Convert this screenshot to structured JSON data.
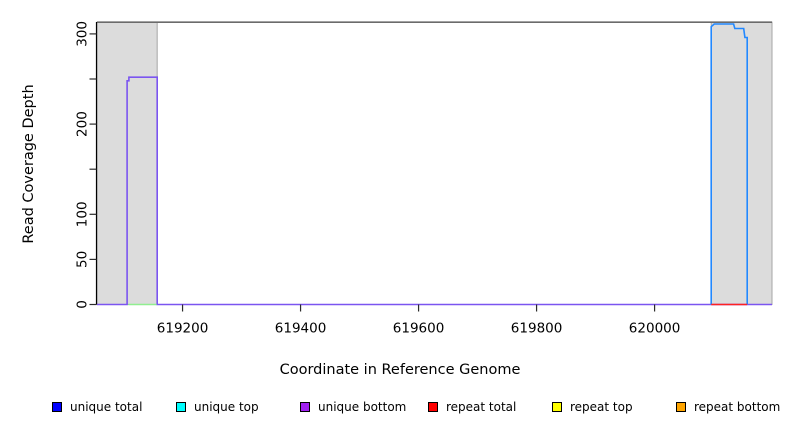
{
  "chart_data": {
    "type": "area",
    "title": "",
    "xlabel": "Coordinate in Reference Genome",
    "ylabel": "Read Coverage Depth",
    "xlim": [
      619055,
      620199
    ],
    "ylim": [
      0,
      313
    ],
    "grid": false,
    "x_ticks": [
      {
        "value": 619200,
        "label": "619200"
      },
      {
        "value": 619400,
        "label": "619400"
      },
      {
        "value": 619600,
        "label": "619600"
      },
      {
        "value": 619800,
        "label": "619800"
      },
      {
        "value": 620000,
        "label": "620000"
      }
    ],
    "y_ticks": [
      {
        "value": 0,
        "label": "0"
      },
      {
        "value": 50,
        "label": "50"
      },
      {
        "value": 100,
        "label": "100"
      },
      {
        "value": 150,
        "label": ""
      },
      {
        "value": 200,
        "label": "200"
      },
      {
        "value": 250,
        "label": ""
      },
      {
        "value": 300,
        "label": "300"
      }
    ],
    "shaded_regions": [
      {
        "name": "left-repeat-region",
        "x0": 619055,
        "x1": 619157,
        "y_top": 313
      },
      {
        "name": "right-repeat-region",
        "x0": 620096,
        "x1": 620199,
        "y_top": 313
      }
    ],
    "ceiling_line": {
      "y": 313,
      "color": "#6B6B6B"
    },
    "series": [
      {
        "name": "unique bottom coverage",
        "color": "#7B55F0",
        "width": 1.6,
        "points": [
          [
            619055,
            0
          ],
          [
            619106,
            0
          ],
          [
            619106,
            248
          ],
          [
            619109,
            248
          ],
          [
            619109,
            252
          ],
          [
            619157,
            252
          ],
          [
            619157,
            0
          ],
          [
            620199,
            0
          ]
        ]
      },
      {
        "name": "left-peak-base-segment",
        "color": "#90EE90",
        "width": 1.6,
        "points": [
          [
            619108,
            0
          ],
          [
            619156,
            0
          ]
        ]
      },
      {
        "name": "unique total coverage",
        "color": "#2288FF",
        "width": 1.6,
        "points": [
          [
            620096,
            0
          ],
          [
            620096,
            308
          ],
          [
            620101,
            311
          ],
          [
            620134,
            311
          ],
          [
            620136,
            306
          ],
          [
            620151,
            306
          ],
          [
            620153,
            296
          ],
          [
            620157,
            296
          ],
          [
            620157,
            0
          ]
        ]
      },
      {
        "name": "repeat total base segment",
        "color": "#FF2222",
        "width": 1.6,
        "points": [
          [
            620096,
            0
          ],
          [
            620157,
            0
          ]
        ]
      }
    ],
    "legend": [
      {
        "label": "unique total",
        "color": "#0000FF"
      },
      {
        "label": "unique top",
        "color": "#00FFFF"
      },
      {
        "label": "unique bottom",
        "color": "#A020F0"
      },
      {
        "label": "repeat total",
        "color": "#FF0000"
      },
      {
        "label": "repeat top",
        "color": "#FFFF00"
      },
      {
        "label": "repeat bottom",
        "color": "#FFA500"
      }
    ],
    "colors": {
      "plot_bg": "#FFFFFF",
      "shade_fill": "#DCDCDC",
      "shade_border": "#A6A6A6",
      "axis": "#000000",
      "tick": "#2B2B2B"
    },
    "legend_position": "bottom"
  }
}
